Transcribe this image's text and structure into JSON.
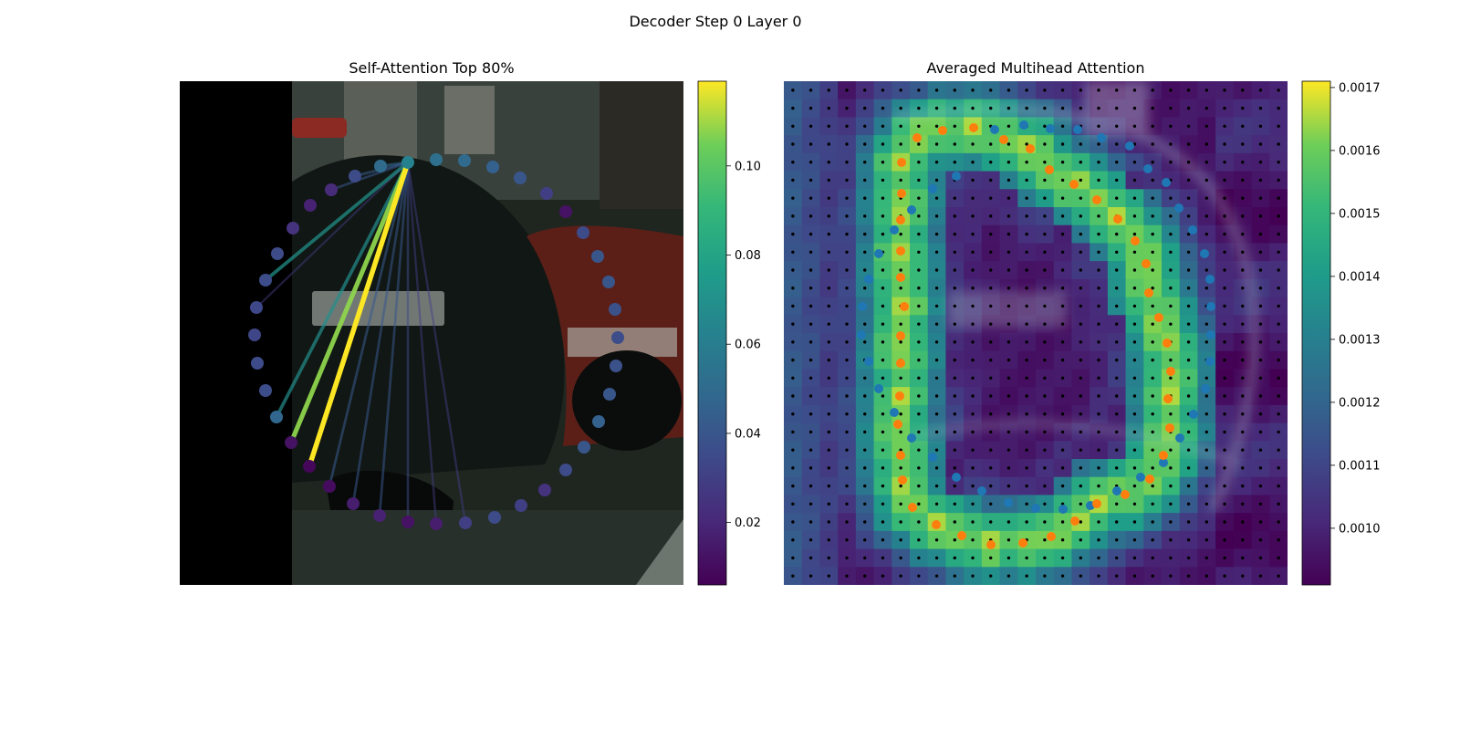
{
  "figure": {
    "suptitle": "Decoder Step 0 Layer 0"
  },
  "chart_data": [
    {
      "type": "scatter",
      "title": "Self-Attention Top 80%",
      "colormap": "viridis",
      "background_image": "street scene: rear of a dark car with license plate, red car and storefronts behind; black band on the left",
      "query_point_index": 0,
      "colorbar": {
        "range": [
          0.006,
          0.119
        ],
        "ticks": [
          0.02,
          0.04,
          0.06,
          0.08,
          0.1
        ],
        "tick_labels": [
          "0.02",
          "0.04",
          "0.06",
          "0.08",
          "0.10"
        ]
      },
      "points": [
        {
          "x": 250,
          "y": 89,
          "v": 0.062
        },
        {
          "x": 281,
          "y": 86,
          "v": 0.052
        },
        {
          "x": 312,
          "y": 87,
          "v": 0.05
        },
        {
          "x": 343,
          "y": 94,
          "v": 0.045
        },
        {
          "x": 373,
          "y": 106,
          "v": 0.04
        },
        {
          "x": 402,
          "y": 123,
          "v": 0.03
        },
        {
          "x": 423,
          "y": 143,
          "v": 0.012
        },
        {
          "x": 442,
          "y": 166,
          "v": 0.035
        },
        {
          "x": 458,
          "y": 192,
          "v": 0.04
        },
        {
          "x": 470,
          "y": 220,
          "v": 0.04
        },
        {
          "x": 477,
          "y": 250,
          "v": 0.038
        },
        {
          "x": 480,
          "y": 281,
          "v": 0.036
        },
        {
          "x": 478,
          "y": 312,
          "v": 0.038
        },
        {
          "x": 471,
          "y": 343,
          "v": 0.04
        },
        {
          "x": 459,
          "y": 373,
          "v": 0.045
        },
        {
          "x": 443,
          "y": 401,
          "v": 0.04
        },
        {
          "x": 423,
          "y": 426,
          "v": 0.035
        },
        {
          "x": 400,
          "y": 448,
          "v": 0.025
        },
        {
          "x": 374,
          "y": 465,
          "v": 0.03
        },
        {
          "x": 345,
          "y": 478,
          "v": 0.035
        },
        {
          "x": 313,
          "y": 484,
          "v": 0.03
        },
        {
          "x": 281,
          "y": 485,
          "v": 0.016
        },
        {
          "x": 250,
          "y": 483,
          "v": 0.012
        },
        {
          "x": 219,
          "y": 476,
          "v": 0.018
        },
        {
          "x": 190,
          "y": 463,
          "v": 0.016
        },
        {
          "x": 164,
          "y": 444,
          "v": 0.01
        },
        {
          "x": 142,
          "y": 422,
          "v": 0.008
        },
        {
          "x": 122,
          "y": 396,
          "v": 0.012
        },
        {
          "x": 106,
          "y": 368,
          "v": 0.048
        },
        {
          "x": 94,
          "y": 339,
          "v": 0.036
        },
        {
          "x": 85,
          "y": 309,
          "v": 0.035
        },
        {
          "x": 82,
          "y": 278,
          "v": 0.033
        },
        {
          "x": 84,
          "y": 248,
          "v": 0.034
        },
        {
          "x": 94,
          "y": 218,
          "v": 0.036
        },
        {
          "x": 107,
          "y": 189,
          "v": 0.035
        },
        {
          "x": 124,
          "y": 161,
          "v": 0.025
        },
        {
          "x": 143,
          "y": 136,
          "v": 0.018
        },
        {
          "x": 166,
          "y": 119,
          "v": 0.022
        },
        {
          "x": 192,
          "y": 104,
          "v": 0.035
        },
        {
          "x": 220,
          "y": 93,
          "v": 0.05
        }
      ],
      "edges": [
        {
          "to": 26,
          "w": 0.119
        },
        {
          "to": 27,
          "w": 0.108
        },
        {
          "to": 28,
          "w": 0.068
        },
        {
          "to": 33,
          "w": 0.07
        },
        {
          "to": 32,
          "w": 0.028
        },
        {
          "to": 25,
          "w": 0.042
        },
        {
          "to": 24,
          "w": 0.04
        },
        {
          "to": 23,
          "w": 0.04
        },
        {
          "to": 22,
          "w": 0.035
        },
        {
          "to": 21,
          "w": 0.03
        },
        {
          "to": 20,
          "w": 0.03
        },
        {
          "to": 39,
          "w": 0.048
        },
        {
          "to": 38,
          "w": 0.042
        },
        {
          "to": 37,
          "w": 0.04
        }
      ]
    },
    {
      "type": "heatmap",
      "title": "Averaged Multihead Attention",
      "colormap": "viridis",
      "background_image": "same street scene blended under the attention heatmap",
      "grid": {
        "cols": 28,
        "rows": 28
      },
      "colorbar": {
        "range": [
          0.00091,
          0.00171
        ],
        "ticks": [
          0.001,
          0.0011,
          0.0012,
          0.0013,
          0.0014,
          0.0015,
          0.0016,
          0.0017
        ],
        "tick_labels": [
          "0.0010",
          "0.0011",
          "0.0012",
          "0.0013",
          "0.0014",
          "0.0015",
          "0.0016",
          "0.0017"
        ]
      },
      "series": [
        {
          "color": "#1f77b4",
          "points": [
            [
              231,
              53
            ],
            [
              263,
              48
            ],
            [
              292,
              52
            ],
            [
              322,
              53
            ],
            [
              348,
              62
            ],
            [
              379,
              71
            ],
            [
              399,
              96
            ],
            [
              419,
              111
            ],
            [
              433,
              139
            ],
            [
              448,
              163
            ],
            [
              461,
              189
            ],
            [
              467,
              217
            ],
            [
              468,
              247
            ],
            [
              468,
              278
            ],
            [
              467,
              307
            ],
            [
              462,
              337
            ],
            [
              449,
              365
            ],
            [
              434,
              391
            ],
            [
              416,
              418
            ],
            [
              391,
              434
            ],
            [
              365,
              449
            ],
            [
              336,
              465
            ],
            [
              306,
              469
            ],
            [
              276,
              468
            ],
            [
              246,
              462
            ],
            [
              217,
              449
            ],
            [
              189,
              434
            ],
            [
              163,
              412
            ],
            [
              140,
              391
            ],
            [
              121,
              363
            ],
            [
              104,
              337
            ],
            [
              93,
              307
            ],
            [
              85,
              278
            ],
            [
              86,
              247
            ],
            [
              93,
              217
            ],
            [
              104,
              189
            ],
            [
              121,
              163
            ],
            [
              140,
              141
            ],
            [
              163,
              118
            ],
            [
              189,
              104
            ]
          ]
        },
        {
          "color": "#ff7f0e",
          "points": [
            [
              146,
              62
            ],
            [
              174,
              54
            ],
            [
              208,
              51
            ],
            [
              241,
              64
            ],
            [
              270,
              74
            ],
            [
              291,
              97
            ],
            [
              318,
              113
            ],
            [
              343,
              130
            ],
            [
              366,
              151
            ],
            [
              385,
              175
            ],
            [
              397,
              200
            ],
            [
              400,
              232
            ],
            [
              411,
              259
            ],
            [
              420,
              287
            ],
            [
              424,
              318
            ],
            [
              421,
              348
            ],
            [
              423,
              380
            ],
            [
              416,
              410
            ],
            [
              401,
              436
            ],
            [
              374,
              453
            ],
            [
              343,
              463
            ],
            [
              319,
              482
            ],
            [
              293,
              499
            ],
            [
              262,
              506
            ],
            [
              227,
              508
            ],
            [
              195,
              498
            ],
            [
              167,
              486
            ],
            [
              141,
              467
            ],
            [
              130,
              437
            ],
            [
              128,
              410
            ],
            [
              125,
              376
            ],
            [
              127,
              345
            ],
            [
              128,
              309
            ],
            [
              128,
              279
            ],
            [
              132,
              247
            ],
            [
              128,
              215
            ],
            [
              128,
              186
            ],
            [
              128,
              152
            ],
            [
              129,
              123
            ],
            [
              129,
              89
            ]
          ]
        }
      ]
    }
  ]
}
